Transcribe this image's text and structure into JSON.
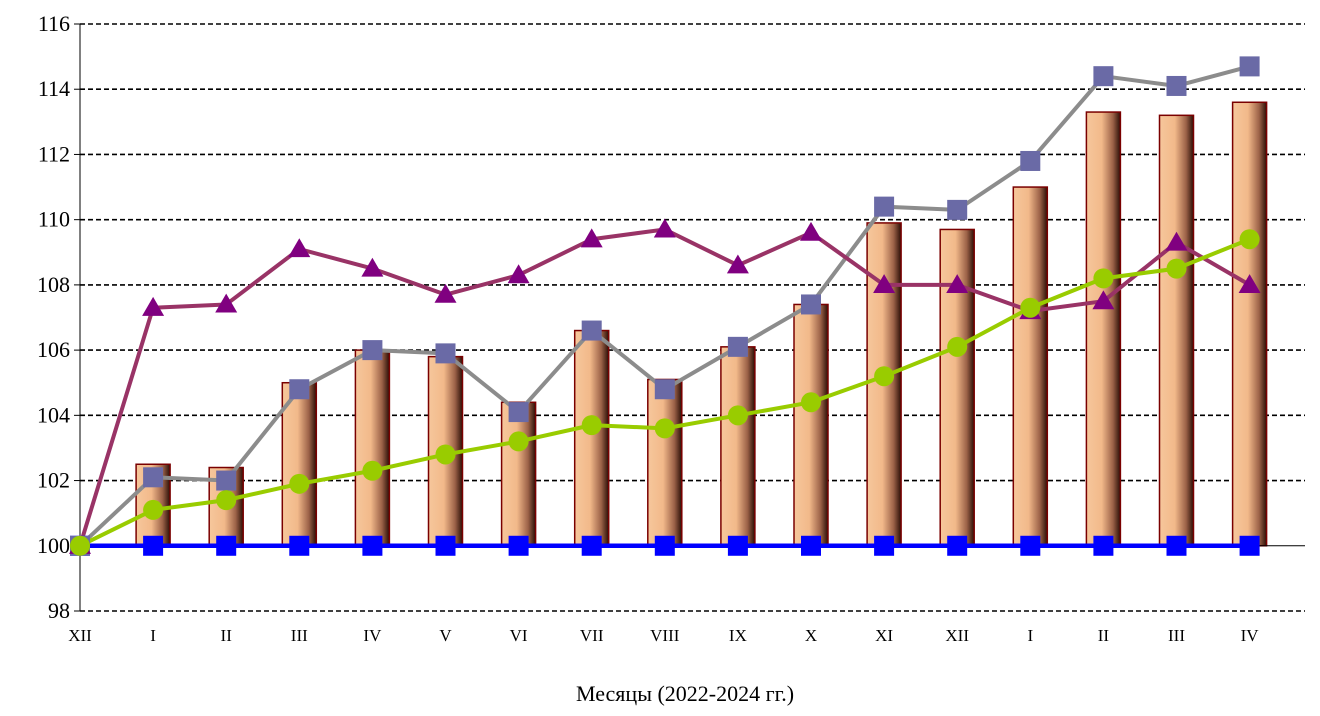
{
  "chart_data": {
    "type": "bar",
    "title": "",
    "xlabel": "Месяцы (2022-2024 гг.)",
    "ylabel": "",
    "ylim": [
      98,
      116
    ],
    "yticks": [
      98,
      100,
      102,
      104,
      106,
      108,
      110,
      112,
      114,
      116
    ],
    "grid": "horizontal dashed",
    "legend": "none",
    "categories": [
      "XII",
      "I",
      "II",
      "III",
      "IV",
      "V",
      "VI",
      "VII",
      "VIII",
      "IX",
      "X",
      "XI",
      "XII",
      "I",
      "II",
      "III",
      "IV"
    ],
    "series": [
      {
        "type": "bar",
        "color": "#f2b98a",
        "values": [
          100.0,
          102.5,
          102.4,
          105.0,
          106.0,
          105.8,
          104.4,
          106.6,
          105.1,
          106.1,
          107.4,
          109.9,
          109.7,
          111.0,
          113.3,
          113.2,
          113.6
        ]
      },
      {
        "type": "line",
        "marker": "square",
        "color": "#0000ff",
        "values": [
          100,
          100,
          100,
          100,
          100,
          100,
          100,
          100,
          100,
          100,
          100,
          100,
          100,
          100,
          100,
          100,
          100
        ]
      },
      {
        "type": "line",
        "marker": "square",
        "color": "#6a6aa6",
        "values": [
          100.0,
          102.1,
          102.0,
          104.8,
          106.0,
          105.9,
          104.1,
          106.6,
          104.8,
          106.1,
          107.4,
          110.4,
          110.3,
          111.8,
          114.4,
          114.1,
          114.7
        ]
      },
      {
        "type": "line",
        "marker": "triangle",
        "color": "#800080",
        "values": [
          100.0,
          107.3,
          107.4,
          109.1,
          108.5,
          107.7,
          108.3,
          109.4,
          109.7,
          108.6,
          109.6,
          108.0,
          108.0,
          107.2,
          107.5,
          109.3,
          108.0
        ]
      },
      {
        "type": "line",
        "marker": "circle",
        "color": "#99cc00",
        "values": [
          100.0,
          101.1,
          101.4,
          101.9,
          102.3,
          102.8,
          103.2,
          103.7,
          103.6,
          104.0,
          104.4,
          105.2,
          106.1,
          107.3,
          108.2,
          108.5,
          109.4
        ]
      }
    ]
  }
}
